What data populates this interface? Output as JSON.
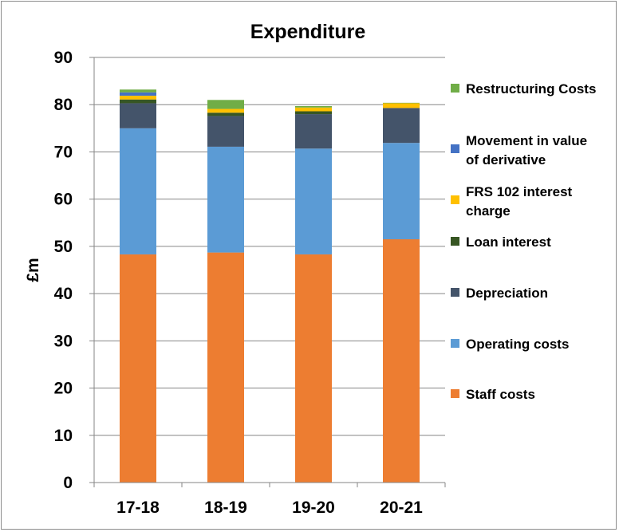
{
  "chart_data": {
    "type": "bar",
    "stacked": true,
    "title": "Expenditure",
    "xlabel": "",
    "ylabel": "£m",
    "ylim": [
      0,
      90
    ],
    "yticks": [
      "0",
      "10",
      "20",
      "30",
      "40",
      "50",
      "60",
      "70",
      "80",
      "90"
    ],
    "grid": true,
    "legend_position": "right",
    "categories": [
      "17-18",
      "18-19",
      "19-20",
      "20-21"
    ],
    "series": [
      {
        "name": "Staff costs",
        "color": "#ED7D31",
        "values": [
          48.3,
          48.7,
          48.3,
          51.5
        ]
      },
      {
        "name": "Operating costs",
        "color": "#5B9BD5",
        "values": [
          26.7,
          22.4,
          22.4,
          20.4
        ]
      },
      {
        "name": "Depreciation",
        "color": "#44546A",
        "values": [
          5.3,
          6.5,
          7.3,
          7.4
        ]
      },
      {
        "name": "Loan interest",
        "color": "#375623",
        "values": [
          0.8,
          0.7,
          0.6,
          0.0
        ]
      },
      {
        "name": "FRS 102 interest charge",
        "color": "#FFC000",
        "values": [
          0.8,
          0.8,
          0.8,
          1.0
        ]
      },
      {
        "name": "Movement in value of derivative",
        "color": "#4472C4",
        "values": [
          0.7,
          0.0,
          0.0,
          0.0
        ]
      },
      {
        "name": "Restructuring Costs",
        "color": "#70AD47",
        "values": [
          0.6,
          1.9,
          0.3,
          0.1
        ]
      }
    ],
    "legend_lines": {
      "Restructuring Costs": [
        "Restructuring Costs"
      ],
      "Movement in value of derivative": [
        "Movement in value",
        "of derivative"
      ],
      "FRS 102 interest charge": [
        "FRS 102 interest",
        "charge"
      ],
      "Loan interest": [
        "Loan interest"
      ],
      "Depreciation": [
        "Depreciation"
      ],
      "Operating costs": [
        "Operating costs"
      ],
      "Staff costs": [
        "Staff costs"
      ]
    },
    "legend_order": [
      "Restructuring Costs",
      "Movement in value of derivative",
      "FRS 102 interest charge",
      "Loan interest",
      "Depreciation",
      "Operating costs",
      "Staff costs"
    ]
  }
}
